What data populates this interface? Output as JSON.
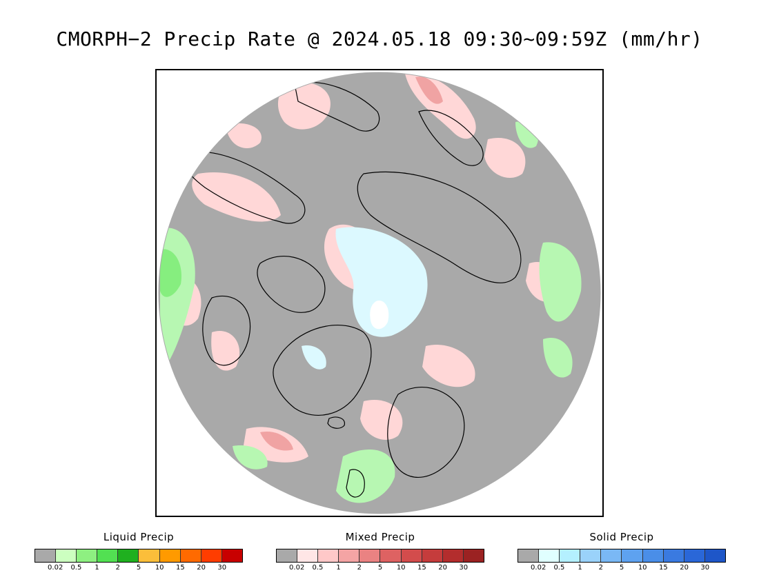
{
  "title": "CMORPH−2 Precip Rate @ 2024.05.18 09:30~09:59Z (mm/hr)",
  "map": {
    "background_color": "#a9a9a9",
    "coastline_color": "#000000",
    "precip_colors": {
      "liquid_light": "#b7f7b2",
      "liquid_mid": "#86ee7f",
      "mixed_light": "#ffd7d7",
      "mixed_mid": "#f0a3a3",
      "solid_light": "#dcf9ff",
      "solid_mid": "#bfefff",
      "pole_hole": "#ffffff"
    }
  },
  "legends": [
    {
      "title": "Liquid Precip",
      "colors": [
        "#a9a9a9",
        "#ccffc0",
        "#8ef081",
        "#52e052",
        "#1fb01f",
        "#fbbe3a",
        "#ff9a00",
        "#ff6a00",
        "#ff3d00",
        "#c80000"
      ],
      "ticks": [
        "0.02",
        "0.5",
        "1",
        "2",
        "5",
        "10",
        "15",
        "20",
        "30"
      ]
    },
    {
      "title": "Mixed Precip",
      "colors": [
        "#a9a9a9",
        "#ffe6e6",
        "#ffc8c8",
        "#f4a4a4",
        "#ea8282",
        "#de6262",
        "#d34c4c",
        "#c53c3c",
        "#b32d2d",
        "#9b2222"
      ],
      "ticks": [
        "0.02",
        "0.5",
        "1",
        "2",
        "5",
        "10",
        "15",
        "20",
        "30"
      ]
    },
    {
      "title": "Solid Precip",
      "colors": [
        "#a9a9a9",
        "#e0ffff",
        "#b4f0ff",
        "#9ad2fa",
        "#7ab8f5",
        "#5ea2f0",
        "#4a8ee8",
        "#3a7ae0",
        "#2a67d8",
        "#1e56c8"
      ],
      "ticks": [
        "0.02",
        "0.5",
        "1",
        "2",
        "5",
        "10",
        "15",
        "20",
        "30"
      ]
    }
  ]
}
